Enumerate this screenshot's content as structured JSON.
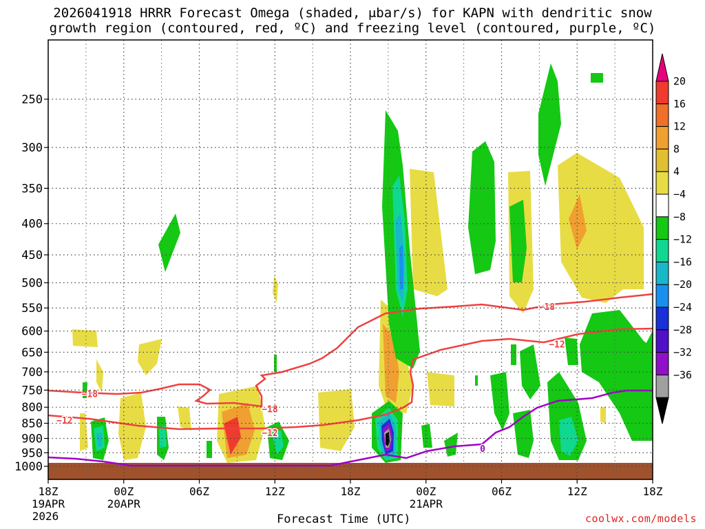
{
  "title_line1": "2026041918 HRRR Forecast Omega (shaded, μbar/s) for KAPN with dendritic snow",
  "title_line2": "growth region (contoured, red, ºC) and freezing level (contoured, purple, ºC)",
  "credit": "coolwx.com/models",
  "chart_data": {
    "type": "contour-time-height",
    "xlabel": "Forecast Time (UTC)",
    "x_ticks": [
      {
        "label": "18Z",
        "sub1": "19APR",
        "sub2": "2026",
        "hour": 0
      },
      {
        "label": "00Z",
        "sub1": "20APR",
        "sub2": "",
        "hour": 6
      },
      {
        "label": "06Z",
        "sub1": "",
        "sub2": "",
        "hour": 12
      },
      {
        "label": "12Z",
        "sub1": "",
        "sub2": "",
        "hour": 18
      },
      {
        "label": "18Z",
        "sub1": "",
        "sub2": "",
        "hour": 24
      },
      {
        "label": "00Z",
        "sub1": "21APR",
        "sub2": "",
        "hour": 30
      },
      {
        "label": "06Z",
        "sub1": "",
        "sub2": "",
        "hour": 36
      },
      {
        "label": "12Z",
        "sub1": "",
        "sub2": "",
        "hour": 42
      },
      {
        "label": "18Z",
        "sub1": "",
        "sub2": "",
        "hour": 48
      }
    ],
    "x_range_hours": [
      0,
      48
    ],
    "y_pressure_levels": [
      250,
      300,
      350,
      400,
      450,
      500,
      550,
      600,
      650,
      700,
      750,
      800,
      850,
      900,
      950,
      1000
    ],
    "y_range_hpa": [
      200,
      1010
    ],
    "y_scale": "log-pressure, reversed",
    "grid": true,
    "colorbar": {
      "labels": [
        "20",
        "16",
        "12",
        "8",
        "4",
        "−4",
        "−8",
        "−12",
        "−16",
        "−20",
        "−24",
        "−28",
        "−32",
        "−36"
      ],
      "colors": [
        "#e6007e",
        "#f03a2c",
        "#f0702a",
        "#f0a030",
        "#e0c030",
        "#e8dc44",
        "#ffffff",
        "#14c814",
        "#10d890",
        "#18b8c8",
        "#1890f0",
        "#1830d8",
        "#5010c8",
        "#9010c8",
        "#a0a0a0",
        "#000000"
      ]
    },
    "contour_labels": [
      {
        "text": "−18",
        "color": "#f04040",
        "hour": 3.3,
        "p": 760
      },
      {
        "text": "−18",
        "color": "#f04040",
        "hour": 17.6,
        "p": 805
      },
      {
        "text": "−18",
        "color": "#f04040",
        "hour": 39.6,
        "p": 547
      },
      {
        "text": "−12",
        "color": "#f04040",
        "hour": 1.3,
        "p": 840
      },
      {
        "text": "−12",
        "color": "#f04040",
        "hour": 17.6,
        "p": 880
      },
      {
        "text": "−12",
        "color": "#f04040",
        "hour": 40.4,
        "p": 630
      },
      {
        "text": "0",
        "color": "#a000c8",
        "hour": 34.5,
        "p": 935
      }
    ],
    "ground_color": "#a0522d"
  }
}
